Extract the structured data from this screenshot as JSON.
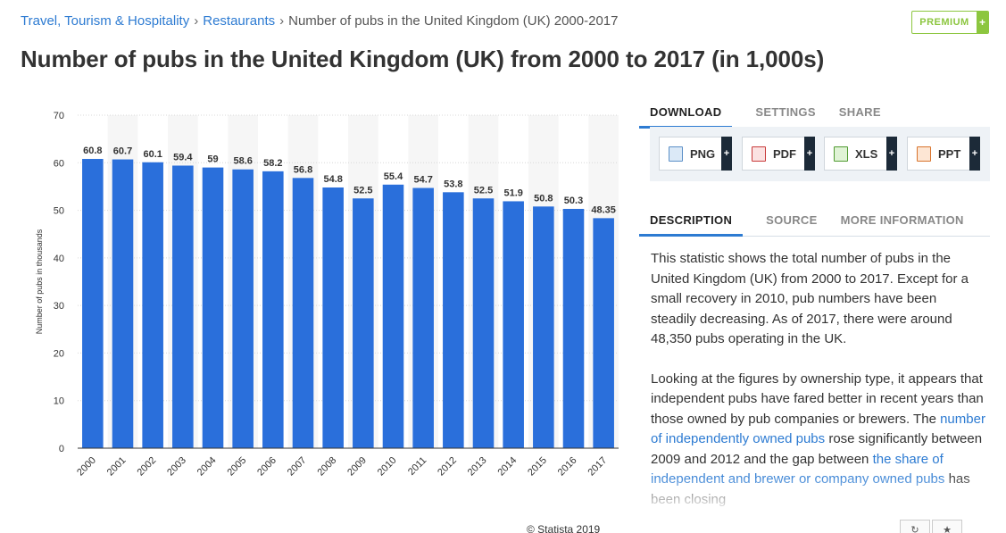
{
  "breadcrumb": {
    "items": [
      "Travel, Tourism & Hospitality",
      "Restaurants"
    ],
    "current": "Number of pubs in the United Kingdom (UK) 2000-2017",
    "separator": "›"
  },
  "premium": {
    "label": "PREMIUM",
    "plus": "+"
  },
  "page_title": "Number of pubs in the United Kingdom (UK) from 2000 to 2017 (in 1,000s)",
  "copyright": "© Statista 2019",
  "tabs_top": [
    "DOWNLOAD",
    "SETTINGS",
    "SHARE"
  ],
  "downloads": [
    {
      "label": "PNG",
      "icon": "png-file-icon"
    },
    {
      "label": "PDF",
      "icon": "pdf-file-icon"
    },
    {
      "label": "XLS",
      "icon": "xls-file-icon"
    },
    {
      "label": "PPT",
      "icon": "ppt-file-icon"
    }
  ],
  "download_plus": "+",
  "tabs_info": [
    "DESCRIPTION",
    "SOURCE",
    "MORE INFORMATION"
  ],
  "description": {
    "p1": "This statistic shows the total number of pubs in the United Kingdom (UK) from 2000 to 2017. Except for a small recovery in 2010, pub numbers have been steadily decreasing. As of 2017, there were around 48,350 pubs operating in the UK.",
    "p2_before": "Looking at the figures by ownership type, it appears that independent pubs have fared better in recent years than those owned by pub companies or brewers. The ",
    "p2_link1": "number of independently owned pubs",
    "p2_middle": " rose significantly between 2009 and 2012 and the gap between ",
    "p2_link2": "the share of independent and brewer or company owned pubs",
    "p2_after": " has been closing"
  },
  "colors": {
    "bar": "#2a6fdb",
    "link": "#2d7bd2",
    "accent_green": "#8cc63f"
  },
  "chart_data": {
    "type": "bar",
    "categories": [
      "2000",
      "2001",
      "2002",
      "2003",
      "2004",
      "2005",
      "2006",
      "2007",
      "2008",
      "2009",
      "2010",
      "2011",
      "2012",
      "2013",
      "2014",
      "2015",
      "2016",
      "2017"
    ],
    "values": [
      60.8,
      60.7,
      60.1,
      59.4,
      59,
      58.6,
      58.2,
      56.8,
      54.8,
      52.5,
      55.4,
      54.7,
      53.8,
      52.5,
      51.9,
      50.8,
      50.3,
      48.35
    ],
    "value_labels": [
      "60.8",
      "60.7",
      "60.1",
      "59.4",
      "59",
      "58.6",
      "58.2",
      "56.8",
      "54.8",
      "52.5",
      "55.4",
      "54.7",
      "53.8",
      "52.5",
      "51.9",
      "50.8",
      "50.3",
      "48.35"
    ],
    "ylabel": "Number of pubs in thousands",
    "xlabel": "",
    "ylim": [
      0,
      70
    ],
    "yticks": [
      0,
      10,
      20,
      30,
      40,
      50,
      60,
      70
    ],
    "grid": true
  }
}
